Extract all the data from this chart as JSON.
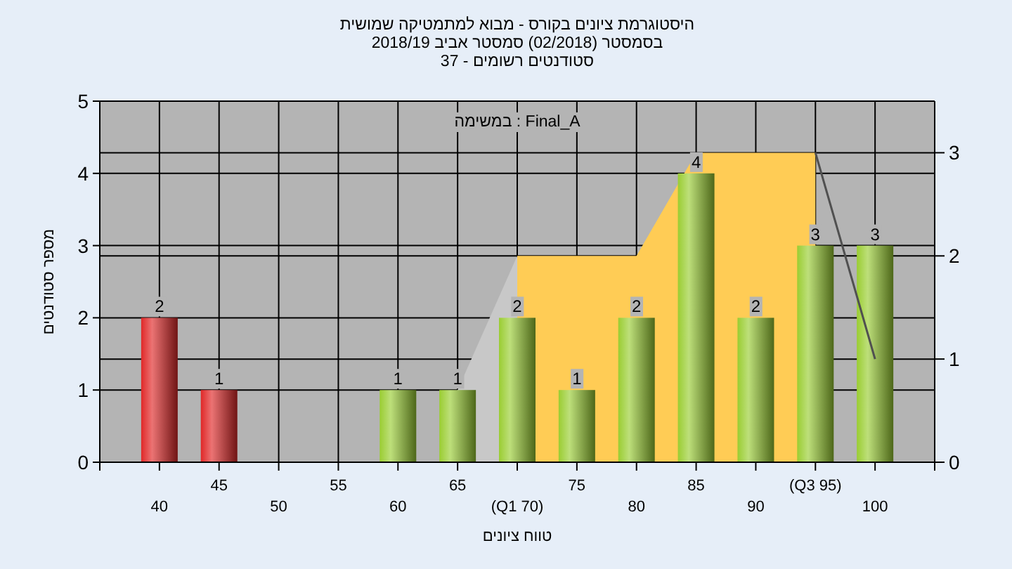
{
  "chart_data": {
    "type": "bar",
    "title": "היסטוגרמת ציונים בקורס - מבוא למתמטיקה שמושית",
    "subtitle": "בסמסטר (02/2018) סמסטר אביב 2018/19",
    "xlabel": "טווח ציונים",
    "ylabel": "מספר סטודנטים",
    "annotations": [
      "סטודנטים רשומים - 37",
      "במשימה : Final_A"
    ],
    "categories": [
      "40",
      "45",
      "50",
      "55",
      "60",
      "65",
      "(Q1 70)",
      "75",
      "80",
      "85",
      "90",
      "(Q3 95)",
      "100"
    ],
    "series": [
      {
        "type": "area",
        "axis": "y2",
        "color": "#c8c8c8",
        "values": [
          null,
          null,
          null,
          null,
          null,
          0.7,
          2,
          null,
          null,
          null,
          null,
          null,
          null
        ]
      },
      {
        "type": "area",
        "axis": "y2",
        "color": "#ffcc55",
        "values": [
          null,
          null,
          null,
          null,
          null,
          null,
          2,
          2,
          2,
          3,
          3,
          3,
          null
        ]
      },
      {
        "colors": [
          "#e02828",
          "#e02828",
          null,
          null,
          "#9acd32",
          "#9acd32",
          "#9acd32",
          "#9acd32",
          "#9acd32",
          "#9acd32",
          "#9acd32",
          "#9acd32",
          "#9acd32"
        ],
        "values": [
          2,
          1,
          0,
          0,
          1,
          1,
          2,
          1,
          2,
          4,
          2,
          3,
          3
        ],
        "value_labels": [
          "2",
          "1",
          null,
          null,
          "1",
          "1",
          "2",
          "1",
          "2",
          "4",
          "2",
          "3",
          "3"
        ]
      },
      {
        "type": "line",
        "axis": "y2",
        "color": "#505050",
        "values": [
          null,
          null,
          null,
          null,
          null,
          null,
          null,
          null,
          null,
          null,
          null,
          3,
          1
        ]
      }
    ],
    "ylim": [
      0,
      5
    ],
    "yticks": [
      0,
      1,
      2,
      3,
      4,
      5
    ],
    "y2lim": [
      0,
      3.5
    ],
    "y2ticks": [
      0,
      1,
      2,
      3
    ],
    "grid": true
  }
}
